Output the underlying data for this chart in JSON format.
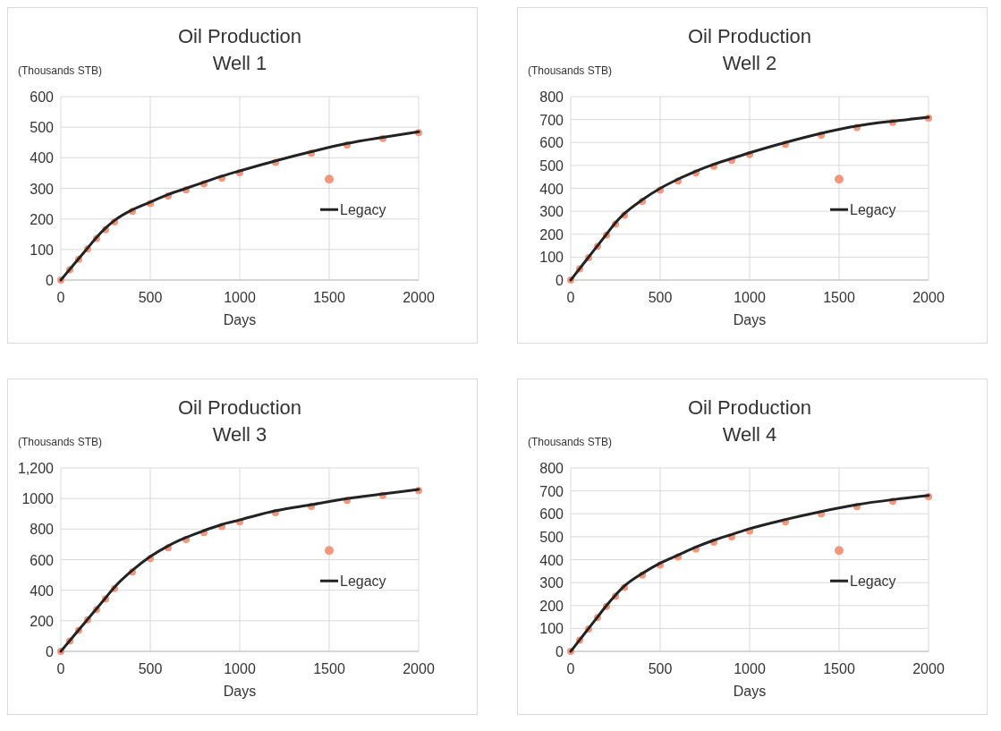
{
  "chart_data": [
    {
      "type": "line",
      "title": "Oil Production\nWell 1",
      "ylabel": "(Thousands STB)",
      "xlabel": "Days",
      "xlim": [
        0,
        2000
      ],
      "xticks": [
        0,
        500,
        1000,
        1500,
        2000
      ],
      "ylim": [
        0,
        600
      ],
      "yticks": [
        0,
        100,
        200,
        300,
        400,
        500,
        600
      ],
      "grid": true,
      "legend": "right",
      "series": [
        {
          "type": "scatter",
          "color": "#f2977c",
          "marker": "circle",
          "x": [
            0,
            50,
            100,
            150,
            200,
            250,
            300,
            400,
            500,
            600,
            700,
            800,
            900,
            1000,
            1200,
            1400,
            1600,
            1800,
            2000
          ],
          "values": [
            0,
            34,
            68,
            102,
            136,
            165,
            190,
            225,
            250,
            275,
            295,
            315,
            334,
            351,
            385,
            415,
            442,
            463,
            482
          ]
        },
        {
          "name": "Legacy",
          "color": "#222222",
          "line_style": "solid",
          "x": [
            0,
            50,
            100,
            150,
            200,
            250,
            300,
            400,
            500,
            600,
            700,
            800,
            900,
            1000,
            1200,
            1400,
            1600,
            1800,
            2000
          ],
          "values": [
            0,
            35,
            70,
            105,
            140,
            170,
            195,
            230,
            255,
            280,
            300,
            320,
            340,
            357,
            390,
            420,
            447,
            467,
            485
          ]
        }
      ]
    },
    {
      "type": "line",
      "title": "Oil Production\nWell 2",
      "ylabel": "(Thousands STB)",
      "xlabel": "Days",
      "xlim": [
        0,
        2000
      ],
      "xticks": [
        0,
        500,
        1000,
        1500,
        2000
      ],
      "ylim": [
        0,
        800
      ],
      "yticks": [
        0,
        100,
        200,
        300,
        400,
        500,
        600,
        700,
        800
      ],
      "grid": true,
      "legend": "right",
      "series": [
        {
          "type": "scatter",
          "color": "#f2977c",
          "marker": "circle",
          "x": [
            0,
            50,
            100,
            150,
            200,
            250,
            300,
            400,
            500,
            600,
            700,
            800,
            900,
            1000,
            1200,
            1400,
            1600,
            1800,
            2000
          ],
          "values": [
            0,
            49,
            98,
            147,
            196,
            244,
            283,
            343,
            392,
            432,
            467,
            497,
            522,
            547,
            592,
            632,
            665,
            688,
            706
          ]
        },
        {
          "name": "Legacy",
          "color": "#222222",
          "line_style": "solid",
          "x": [
            0,
            50,
            100,
            150,
            200,
            250,
            300,
            400,
            500,
            600,
            700,
            800,
            900,
            1000,
            1200,
            1400,
            1600,
            1800,
            2000
          ],
          "values": [
            0,
            50,
            100,
            150,
            200,
            250,
            290,
            350,
            400,
            440,
            475,
            505,
            530,
            555,
            600,
            640,
            672,
            693,
            710
          ]
        }
      ]
    },
    {
      "type": "line",
      "title": "Oil Production\nWell 3",
      "ylabel": "(Thousands STB)",
      "xlabel": "Days",
      "xlim": [
        0,
        2000
      ],
      "xticks": [
        0,
        500,
        1000,
        1500,
        2000
      ],
      "ylim": [
        0,
        1200
      ],
      "yticks": [
        0,
        200,
        400,
        600,
        800,
        1000,
        {
          "value": 1200,
          "label": "1,200"
        }
      ],
      "grid": true,
      "legend": "right",
      "series": [
        {
          "type": "scatter",
          "color": "#f2977c",
          "marker": "circle",
          "x": [
            0,
            50,
            100,
            150,
            200,
            250,
            300,
            400,
            500,
            600,
            700,
            800,
            900,
            1000,
            1200,
            1400,
            1600,
            1800,
            2000
          ],
          "values": [
            0,
            68,
            137,
            206,
            274,
            343,
            411,
            520,
            608,
            678,
            732,
            777,
            817,
            847,
            907,
            948,
            988,
            1020,
            1052
          ]
        },
        {
          "name": "Legacy",
          "color": "#222222",
          "line_style": "solid",
          "x": [
            0,
            50,
            100,
            150,
            200,
            250,
            300,
            400,
            500,
            600,
            700,
            800,
            900,
            1000,
            1200,
            1400,
            1600,
            1800,
            2000
          ],
          "values": [
            0,
            70,
            140,
            210,
            280,
            350,
            420,
            530,
            620,
            690,
            745,
            790,
            830,
            860,
            920,
            960,
            1000,
            1030,
            1060
          ]
        }
      ]
    },
    {
      "type": "line",
      "title": "Oil Production\nWell 4",
      "ylabel": "(Thousands STB)",
      "xlabel": "Days",
      "xlim": [
        0,
        2000
      ],
      "xticks": [
        0,
        500,
        1000,
        1500,
        2000
      ],
      "ylim": [
        0,
        800
      ],
      "yticks": [
        0,
        100,
        200,
        300,
        400,
        500,
        600,
        700,
        800
      ],
      "grid": true,
      "legend": "right",
      "series": [
        {
          "type": "scatter",
          "color": "#f2977c",
          "marker": "circle",
          "x": [
            0,
            50,
            100,
            150,
            200,
            250,
            300,
            400,
            500,
            600,
            700,
            800,
            900,
            1000,
            1200,
            1400,
            1600,
            1800,
            2000
          ],
          "values": [
            0,
            49,
            98,
            147,
            196,
            240,
            279,
            333,
            377,
            412,
            446,
            476,
            500,
            525,
            565,
            600,
            631,
            655,
            675
          ]
        },
        {
          "name": "Legacy",
          "color": "#222222",
          "line_style": "solid",
          "x": [
            0,
            50,
            100,
            150,
            200,
            250,
            300,
            400,
            500,
            600,
            700,
            800,
            900,
            1000,
            1200,
            1400,
            1600,
            1800,
            2000
          ],
          "values": [
            0,
            50,
            100,
            150,
            200,
            245,
            285,
            340,
            385,
            420,
            455,
            485,
            510,
            535,
            575,
            610,
            640,
            662,
            680
          ]
        }
      ]
    }
  ]
}
